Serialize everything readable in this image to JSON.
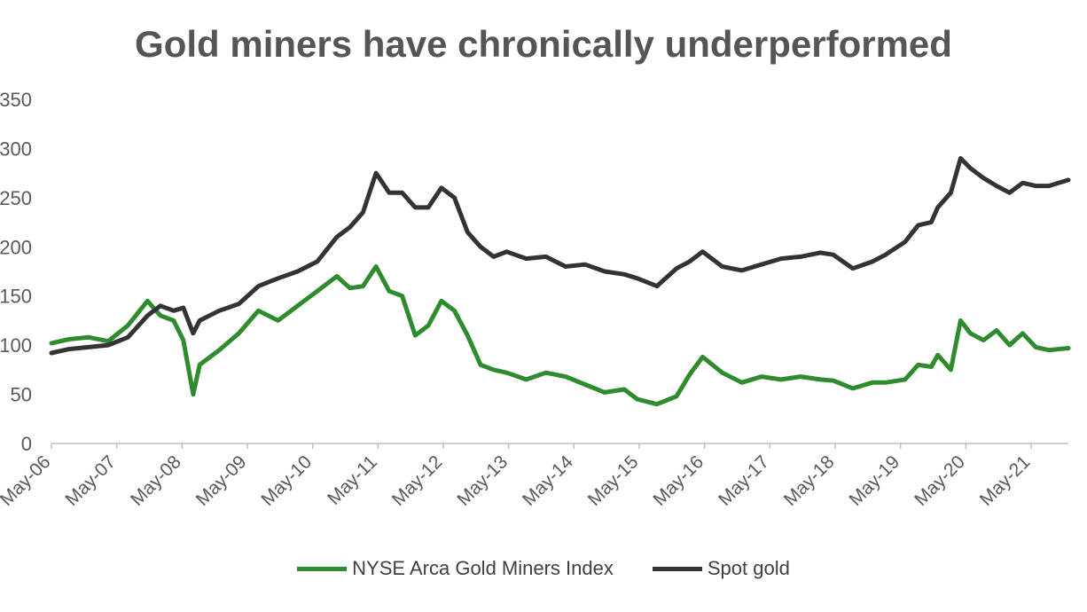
{
  "chart_data": {
    "type": "line",
    "title": "Gold miners have chronically underperformed",
    "xlabel": "",
    "ylabel": "",
    "ylim": [
      0,
      350
    ],
    "yticks": [
      0,
      50,
      100,
      150,
      200,
      250,
      300,
      350
    ],
    "ytick_labels": [
      "0",
      "50",
      "100",
      "150",
      "200",
      "250",
      "300",
      "350"
    ],
    "xticks": [
      "May-06",
      "May-07",
      "May-08",
      "May-09",
      "May-10",
      "May-11",
      "May-12",
      "May-13",
      "May-14",
      "May-15",
      "May-16",
      "May-17",
      "May-18",
      "May-19",
      "May-20",
      "May-21"
    ],
    "x_range": [
      2006.33,
      2021.9
    ],
    "grid": false,
    "legend_position": "bottom",
    "series": [
      {
        "name": "NYSE Arca Gold Miners Index",
        "color": "#2e8b2e",
        "x": [
          2006.33,
          2006.6,
          2006.9,
          2007.2,
          2007.5,
          2007.8,
          2008.0,
          2008.2,
          2008.35,
          2008.5,
          2008.6,
          2008.9,
          2009.2,
          2009.5,
          2009.8,
          2010.1,
          2010.4,
          2010.7,
          2010.9,
          2011.1,
          2011.3,
          2011.5,
          2011.7,
          2011.9,
          2012.1,
          2012.3,
          2012.5,
          2012.7,
          2012.9,
          2013.1,
          2013.3,
          2013.6,
          2013.9,
          2014.2,
          2014.5,
          2014.8,
          2015.1,
          2015.3,
          2015.6,
          2015.9,
          2016.1,
          2016.3,
          2016.6,
          2016.9,
          2017.2,
          2017.5,
          2017.8,
          2018.1,
          2018.3,
          2018.6,
          2018.9,
          2019.1,
          2019.4,
          2019.6,
          2019.8,
          2019.9,
          2020.1,
          2020.25,
          2020.4,
          2020.6,
          2020.8,
          2021.0,
          2021.2,
          2021.4,
          2021.6,
          2021.9
        ],
        "values": [
          102,
          106,
          108,
          104,
          120,
          145,
          130,
          125,
          105,
          50,
          80,
          95,
          112,
          135,
          125,
          140,
          155,
          170,
          158,
          160,
          180,
          155,
          150,
          110,
          120,
          145,
          135,
          110,
          80,
          75,
          72,
          65,
          72,
          68,
          60,
          52,
          55,
          45,
          40,
          48,
          70,
          88,
          72,
          62,
          68,
          65,
          68,
          65,
          64,
          56,
          62,
          62,
          65,
          80,
          78,
          90,
          75,
          125,
          112,
          105,
          115,
          100,
          112,
          98,
          95,
          97
        ]
      },
      {
        "name": "Spot gold",
        "color": "#333333",
        "x": [
          2006.33,
          2006.6,
          2006.9,
          2007.2,
          2007.5,
          2007.8,
          2008.0,
          2008.2,
          2008.35,
          2008.5,
          2008.6,
          2008.9,
          2009.2,
          2009.5,
          2009.8,
          2010.1,
          2010.4,
          2010.7,
          2010.9,
          2011.1,
          2011.3,
          2011.5,
          2011.7,
          2011.9,
          2012.1,
          2012.3,
          2012.5,
          2012.7,
          2012.9,
          2013.1,
          2013.3,
          2013.6,
          2013.9,
          2014.2,
          2014.5,
          2014.8,
          2015.1,
          2015.3,
          2015.6,
          2015.9,
          2016.1,
          2016.3,
          2016.6,
          2016.9,
          2017.2,
          2017.5,
          2017.8,
          2018.1,
          2018.3,
          2018.6,
          2018.9,
          2019.1,
          2019.4,
          2019.6,
          2019.8,
          2019.9,
          2020.1,
          2020.25,
          2020.4,
          2020.6,
          2020.8,
          2021.0,
          2021.2,
          2021.4,
          2021.6,
          2021.9
        ],
        "values": [
          92,
          96,
          98,
          100,
          108,
          130,
          140,
          135,
          138,
          112,
          125,
          135,
          142,
          160,
          168,
          175,
          185,
          210,
          220,
          235,
          275,
          255,
          255,
          240,
          240,
          260,
          250,
          215,
          200,
          190,
          195,
          188,
          190,
          180,
          182,
          175,
          172,
          168,
          160,
          178,
          185,
          195,
          180,
          176,
          182,
          188,
          190,
          194,
          192,
          178,
          185,
          192,
          205,
          222,
          225,
          240,
          255,
          290,
          280,
          270,
          262,
          255,
          265,
          262,
          262,
          268
        ]
      }
    ]
  }
}
